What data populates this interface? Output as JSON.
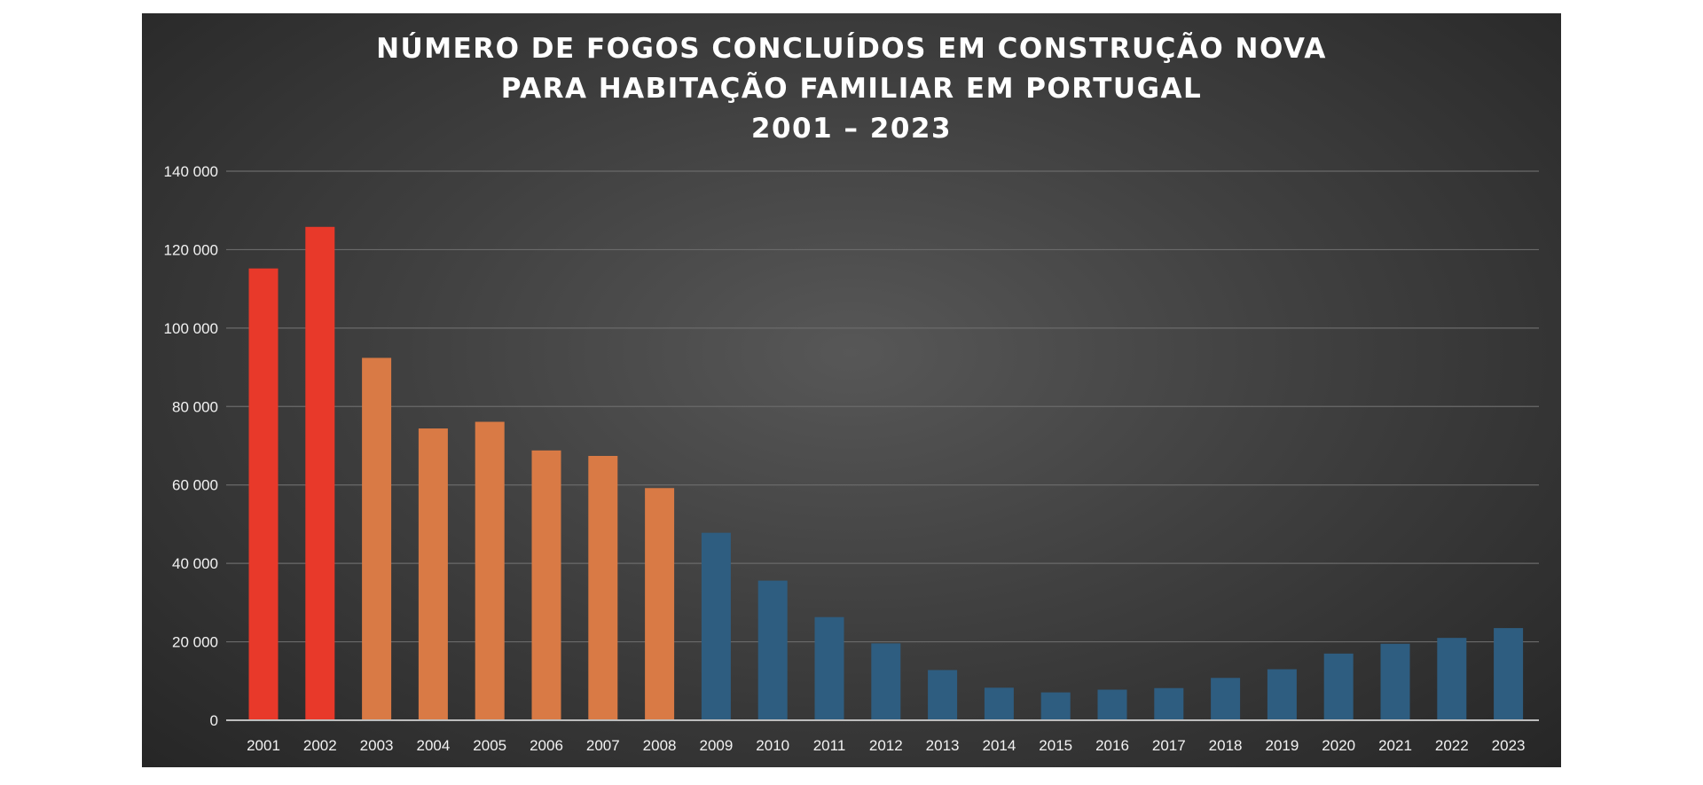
{
  "chart_data": {
    "type": "bar",
    "title_lines": [
      "NÚMERO DE FOGOS CONCLUÍDOS EM CONSTRUÇÃO NOVA",
      "PARA HABITAÇÃO FAMILIAR EM PORTUGAL",
      "2001 – 2023"
    ],
    "categories": [
      "2001",
      "2002",
      "2003",
      "2004",
      "2005",
      "2006",
      "2007",
      "2008",
      "2009",
      "2010",
      "2011",
      "2012",
      "2013",
      "2014",
      "2015",
      "2016",
      "2017",
      "2018",
      "2019",
      "2020",
      "2021",
      "2022",
      "2023"
    ],
    "values": [
      115200,
      125800,
      92400,
      74400,
      76100,
      68800,
      67400,
      59200,
      47800,
      35600,
      26300,
      19600,
      12800,
      8300,
      7100,
      7800,
      8200,
      10800,
      13000,
      17000,
      19500,
      21000,
      23500
    ],
    "bar_colors": [
      "#e8392a",
      "#e8392a",
      "#d97a45",
      "#d97a45",
      "#d97a45",
      "#d97a45",
      "#d97a45",
      "#d97a45",
      "#2e5d80",
      "#2e5d80",
      "#2e5d80",
      "#2e5d80",
      "#2e5d80",
      "#2e5d80",
      "#2e5d80",
      "#2e5d80",
      "#2e5d80",
      "#2e5d80",
      "#2e5d80",
      "#2e5d80",
      "#2e5d80",
      "#2e5d80",
      "#2e5d80"
    ],
    "yticks": [
      0,
      20000,
      40000,
      60000,
      80000,
      100000,
      120000,
      140000
    ],
    "ytick_labels": [
      "0",
      "20 000",
      "40 000",
      "60 000",
      "80 000",
      "100 000",
      "120 000",
      "140 000"
    ],
    "ylim": [
      0,
      140000
    ],
    "grid": true,
    "legend": "none"
  }
}
